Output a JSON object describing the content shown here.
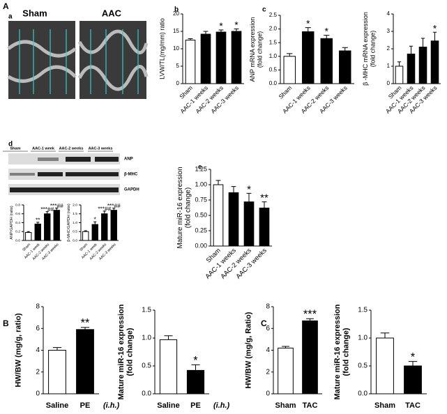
{
  "figure": {
    "panels": [
      "A",
      "a",
      "b",
      "c",
      "d",
      "e",
      "B",
      "C"
    ],
    "echo_labels": [
      "Sham",
      "AAC"
    ],
    "blot_lanes": [
      "Sham",
      "AAC-1 week",
      "AAC-2 weeks",
      "AAC-3 weeks"
    ],
    "blot_bands": [
      "ANP",
      "β-MHC",
      "GAPDH"
    ]
  },
  "chart_data": [
    {
      "type": "bar",
      "ylabel": [
        "LVW/TL(mg/mm) ratio"
      ],
      "categories": [
        "Sham",
        "AAC-1 weeks",
        "AAC-2 weeks",
        "AAC-3 weeks"
      ],
      "values": [
        12.5,
        14.2,
        14.8,
        15.0
      ],
      "errors": [
        0.4,
        0.8,
        0.6,
        0.7
      ],
      "annotations": [
        null,
        null,
        "*",
        "*"
      ],
      "colors": [
        "#ffffff",
        "#000000",
        "#000000",
        "#000000"
      ],
      "ylim": [
        0,
        20
      ],
      "yticks": [
        0,
        5,
        10,
        15,
        20
      ]
    },
    {
      "type": "bar",
      "ylabel": [
        "ANP mRNA expression",
        "(fold change)"
      ],
      "categories": [
        "Sham",
        "AAC-1 weeks",
        "AAC-2 weeks",
        "AAC-3 weeks"
      ],
      "values": [
        1.0,
        1.9,
        1.65,
        1.2
      ],
      "errors": [
        0.1,
        0.15,
        0.12,
        0.12
      ],
      "annotations": [
        null,
        "*",
        "*",
        null
      ],
      "colors": [
        "#ffffff",
        "#000000",
        "#000000",
        "#000000"
      ],
      "ylim": [
        0,
        2.5
      ],
      "yticks": [
        {
          "value": 0,
          "label": "0.0"
        },
        0.5,
        {
          "value": 1,
          "label": "1.0"
        },
        1.5,
        {
          "value": 2,
          "label": "2.0"
        },
        2.5
      ]
    },
    {
      "type": "bar",
      "ylabel": [
        "β -MHC mRNA expression",
        "(fold change)"
      ],
      "categories": [
        "Sham",
        "AAC-1 weeks",
        "AAC-2 weeks",
        "AAC-3 weeks"
      ],
      "values": [
        1.0,
        1.7,
        2.1,
        2.45
      ],
      "errors": [
        0.25,
        0.45,
        0.5,
        0.5
      ],
      "annotations": [
        null,
        null,
        null,
        "*"
      ],
      "colors": [
        "#ffffff",
        "#000000",
        "#000000",
        "#000000"
      ],
      "ylim": [
        0,
        4
      ],
      "yticks": [
        0,
        1,
        2,
        3,
        4
      ]
    },
    {
      "type": "bar",
      "ylabel": [
        "ANP/GAPDH (ratio)"
      ],
      "categories": [
        "Sham",
        "AAC-1 week",
        "AAC-2 weeks",
        "AAC-3 weeks"
      ],
      "values": [
        0.18,
        0.37,
        0.6,
        0.68
      ],
      "errors": [
        0.02,
        0.04,
        0.05,
        0.05
      ],
      "annotations": [
        null,
        "**",
        "***##",
        "***##"
      ],
      "colors": [
        "#ffffff",
        "#000000",
        "#000000",
        "#000000"
      ],
      "ylim": [
        0,
        0.8
      ],
      "yticks": [
        {
          "value": 0,
          "label": "0.0"
        },
        0.2,
        0.4,
        0.6,
        0.8
      ]
    },
    {
      "type": "bar",
      "ylabel": [
        "β-MHC/GAPDH (ratio)"
      ],
      "categories": [
        "Sham",
        "AAC-1 week",
        "AAC-2 weeks",
        "AAC-3 weeks"
      ],
      "values": [
        0.5,
        0.9,
        1.5,
        1.7
      ],
      "errors": [
        0.05,
        0.15,
        0.15,
        0.12
      ],
      "annotations": [
        null,
        "*",
        "***##",
        "***##"
      ],
      "colors": [
        "#ffffff",
        "#000000",
        "#000000",
        "#000000"
      ],
      "ylim": [
        0,
        2
      ],
      "yticks": [
        {
          "value": 0,
          "label": "0.0"
        },
        0.5,
        {
          "value": 1,
          "label": "1.0"
        },
        1.5,
        {
          "value": 2,
          "label": "2.0"
        }
      ]
    },
    {
      "type": "bar",
      "ylabel": [
        "Mature miR-16 expression",
        "(fold change)"
      ],
      "categories": [
        "Sham",
        "AAC-1 weeks",
        "AAC-2 weeks",
        "AAC-3 weeks"
      ],
      "values": [
        1.0,
        0.87,
        0.72,
        0.62
      ],
      "errors": [
        0.07,
        0.1,
        0.14,
        0.1
      ],
      "annotations": [
        null,
        null,
        "*",
        "**"
      ],
      "colors": [
        "#ffffff",
        "#000000",
        "#000000",
        "#000000"
      ],
      "ylim": [
        0,
        1.25
      ],
      "yticks": [
        {
          "value": 0,
          "label": "0.00"
        },
        0.25,
        {
          "value": 0.5,
          "label": "0.50"
        },
        0.75,
        {
          "value": 1,
          "label": "1.00"
        },
        1.25
      ]
    },
    {
      "type": "bar",
      "ylabel": [
        "HW/BW (mg/g, ratio)"
      ],
      "categories": [
        "Saline",
        "PE"
      ],
      "note": "(i.h.)",
      "values": [
        4.0,
        5.9
      ],
      "errors": [
        0.25,
        0.2
      ],
      "annotations": [
        null,
        "**"
      ],
      "colors": [
        "#ffffff",
        "#000000"
      ],
      "ylim": [
        0,
        8
      ],
      "yticks": [
        0,
        2,
        4,
        6,
        8
      ]
    },
    {
      "type": "bar",
      "ylabel": [
        "Mature miR-16 expression",
        "(fold change)"
      ],
      "categories": [
        "Saline",
        "PE"
      ],
      "note": "(i.h.)",
      "values": [
        0.97,
        0.42
      ],
      "errors": [
        0.07,
        0.1
      ],
      "annotations": [
        null,
        "*"
      ],
      "colors": [
        "#ffffff",
        "#000000"
      ],
      "ylim": [
        0,
        1.5
      ],
      "yticks": [
        {
          "value": 0,
          "label": "0.0"
        },
        0.5,
        {
          "value": 1,
          "label": "1.0"
        },
        1.5
      ]
    },
    {
      "type": "bar",
      "ylabel": [
        "HW/BW (mg/g, Ratio)"
      ],
      "categories": [
        "Sham",
        "TAC"
      ],
      "values": [
        4.2,
        6.7
      ],
      "errors": [
        0.15,
        0.2
      ],
      "annotations": [
        null,
        "***"
      ],
      "colors": [
        "#ffffff",
        "#000000"
      ],
      "ylim": [
        0,
        8
      ],
      "yticks": [
        0,
        2,
        4,
        6,
        8
      ]
    },
    {
      "type": "bar",
      "ylabel": [
        "Mature miR-16 expression",
        "(fold change)"
      ],
      "categories": [
        "Sham",
        "TAC"
      ],
      "values": [
        1.0,
        0.5
      ],
      "errors": [
        0.09,
        0.08
      ],
      "annotations": [
        null,
        "*"
      ],
      "colors": [
        "#ffffff",
        "#000000"
      ],
      "ylim": [
        0,
        1.5
      ],
      "yticks": [
        {
          "value": 0,
          "label": "0.0"
        },
        0.5,
        {
          "value": 1,
          "label": "1.0"
        },
        1.5
      ]
    }
  ]
}
